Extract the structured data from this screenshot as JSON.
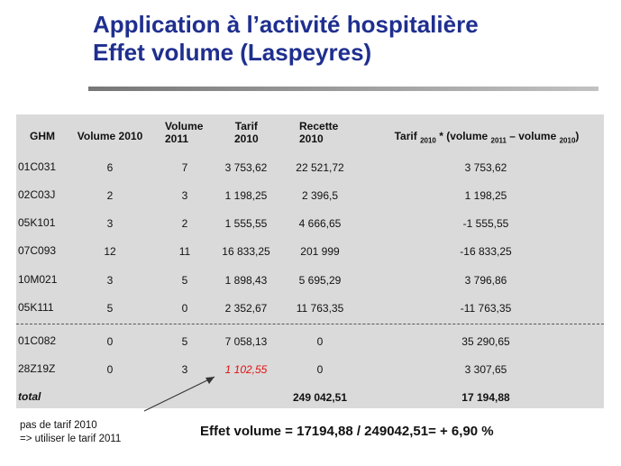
{
  "title": {
    "line1": "Application à l’activité hospitalière",
    "line2": "Effet volume (Laspeyres)"
  },
  "table": {
    "headers": {
      "ghm": "GHM",
      "vol2010": "Volume 2010",
      "vol2011_l1": "Volume",
      "vol2011_l2": "2011",
      "tarif_l1": "Tarif",
      "tarif_l2": "2010",
      "recette_l1": "Recette",
      "recette_l2": "2010",
      "formula_p1": "Tarif ",
      "formula_s1": "2010",
      "formula_p2": " * (volume ",
      "formula_s2": "2011",
      "formula_p3": " – volume ",
      "formula_s3": "2010",
      "formula_p4": ")"
    },
    "rows": [
      {
        "ghm": "01C031",
        "v2010": "6",
        "v2011": "7",
        "tarif": "3 753,62",
        "recette": "22 521,72",
        "effet": "3 753,62"
      },
      {
        "ghm": "02C03J",
        "v2010": "2",
        "v2011": "3",
        "tarif": "1 198,25",
        "recette": "2 396,5",
        "effet": "1 198,25"
      },
      {
        "ghm": "05K101",
        "v2010": "3",
        "v2011": "2",
        "tarif": "1 555,55",
        "recette": "4 666,65",
        "effet": "-1 555,55"
      },
      {
        "ghm": "07C093",
        "v2010": "12",
        "v2011": "11",
        "tarif": "16 833,25",
        "recette": "201 999",
        "effet": "-16 833,25"
      },
      {
        "ghm": "10M021",
        "v2010": "3",
        "v2011": "5",
        "tarif": "1 898,43",
        "recette": "5 695,29",
        "effet": "3 796,86"
      },
      {
        "ghm": "05K111",
        "v2010": "5",
        "v2011": "0",
        "tarif": "2 352,67",
        "recette": "11 763,35",
        "effet": "-11 763,35"
      },
      {
        "ghm": "01C082",
        "v2010": "0",
        "v2011": "5",
        "tarif": "7 058,13",
        "recette": "0",
        "effet": "35 290,65"
      },
      {
        "ghm": "28Z19Z",
        "v2010": "0",
        "v2011": "3",
        "tarif": "1 102,55",
        "recette": "0",
        "effet": "3 307,65"
      }
    ],
    "total": {
      "label": "total",
      "recette": "249 042,51",
      "effet": "17 194,88"
    }
  },
  "annotation": {
    "line1": "pas de tarif 2010",
    "line2": "=> utiliser le tarif 2011"
  },
  "result": "Effet volume = 17194,88 / 249042,51= + 6,90 %",
  "colors": {
    "title": "#1f2f8f",
    "highlight": "#e01010",
    "table_bg": "#dadada"
  }
}
